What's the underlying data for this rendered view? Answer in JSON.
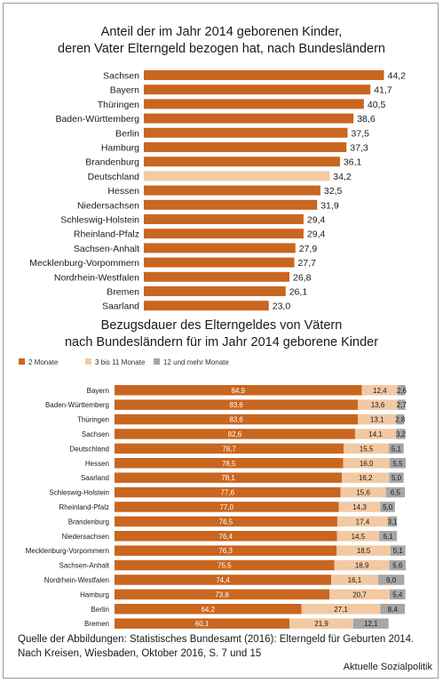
{
  "chart_data": [
    {
      "type": "bar",
      "orientation": "horizontal",
      "title_lines": [
        "Anteil der im Jahr 2014 geborenen Kinder,",
        "deren Vater Elterngeld bezogen hat, nach Bundesländern"
      ],
      "categories": [
        "Sachsen",
        "Bayern",
        "Thüringen",
        "Baden-Württemberg",
        "Berlin",
        "Hamburg",
        "Brandenburg",
        "Deutschland",
        "Hessen",
        "Niedersachsen",
        "Schleswig-Holstein",
        "Rheinland-Pfalz",
        "Sachsen-Anhalt",
        "Mecklenburg-Vorpommern",
        "Nordrhein-Westfalen",
        "Bremen",
        "Saarland"
      ],
      "values": [
        44.2,
        41.7,
        40.5,
        38.6,
        37.5,
        37.3,
        36.1,
        34.2,
        32.5,
        31.9,
        29.4,
        29.4,
        27.9,
        27.7,
        26.8,
        26.1,
        23.0
      ],
      "value_labels": [
        "44,2",
        "41,7",
        "40,5",
        "38,6",
        "37,5",
        "37,3",
        "36,1",
        "34,2",
        "32,5",
        "31,9",
        "29,4",
        "29,4",
        "27,9",
        "27,7",
        "26,8",
        "26,1",
        "23,0"
      ],
      "highlight_category": "Deutschland",
      "colors": {
        "bar": "#c9661f",
        "highlight": "#f2c9a3"
      },
      "xlim": [
        0,
        45
      ],
      "grid": false
    },
    {
      "type": "bar",
      "orientation": "horizontal",
      "stacked": true,
      "title_lines": [
        "Bezugsdauer des Elterngeldes von Vätern",
        "nach Bundesländern für im Jahr 2014 geborene Kinder"
      ],
      "legend_placement": "top-left",
      "categories": [
        "Bayern",
        "Baden-Württemberg",
        "Thüringen",
        "Sachsen",
        "Deutschland",
        "Hessen",
        "Saarland",
        "Schleswig-Holstein",
        "Rheinland-Pfalz",
        "Brandenburg",
        "Niedersachsen",
        "Mecklenburg-Vorpommern",
        "Sachsen-Anhalt",
        "Nordrhein-Westfalen",
        "Hamburg",
        "Berlin",
        "Bremen"
      ],
      "series": [
        {
          "name": "2 Monate",
          "color": "#c9661f",
          "values": [
            84.9,
            83.6,
            83.6,
            82.6,
            78.7,
            78.5,
            78.1,
            77.6,
            77.0,
            76.5,
            76.4,
            76.3,
            75.5,
            74.4,
            73.8,
            64.2,
            60.1
          ],
          "labels": [
            "84,9",
            "83,6",
            "83,6",
            "82,6",
            "78,7",
            "78,5",
            "78,1",
            "77,6",
            "77,0",
            "76,5",
            "76,4",
            "76,3",
            "75,5",
            "74,4",
            "73,8",
            "64,2",
            "60,1"
          ]
        },
        {
          "name": "3 bis 11 Monate",
          "color": "#f2c9a3",
          "values": [
            12.4,
            13.6,
            13.1,
            14.1,
            15.5,
            16.0,
            16.2,
            15.6,
            14.3,
            17.4,
            14.5,
            18.5,
            18.9,
            16.1,
            20.7,
            27.1,
            21.9
          ],
          "labels": [
            "12,4",
            "13,6",
            "13,1",
            "14,1",
            "15,5",
            "16,0",
            "16,2",
            "15,6",
            "14,3",
            "17,4",
            "14,5",
            "18,5",
            "18,9",
            "16,1",
            "20,7",
            "27,1",
            "21,9"
          ]
        },
        {
          "name": "12 und mehr Monate",
          "color": "#a6a6a6",
          "values": [
            2.6,
            2.7,
            2.8,
            3.2,
            5.1,
            5.5,
            5.0,
            6.5,
            5.0,
            3.1,
            6.1,
            5.1,
            5.6,
            9.0,
            5.4,
            8.4,
            12.1
          ],
          "labels": [
            "2,6",
            "2,7",
            "2,8",
            "3,2",
            "5,1",
            "5,5",
            "5,0",
            "6,5",
            "5,0",
            "3,1",
            "6,1",
            "5,1",
            "5,6",
            "9,0",
            "5,4",
            "8,4",
            "12,1"
          ]
        }
      ],
      "xlim": [
        0,
        100
      ],
      "grid": false
    }
  ],
  "footer": {
    "source": "Quelle der Abbildungen: Statistisches Bundesamt (2016): Elterngeld für Geburten 2014. Nach Kreisen, Wiesbaden, Oktober 2016, S. 7 und 15",
    "brand": "Aktuelle Sozialpolitik"
  }
}
